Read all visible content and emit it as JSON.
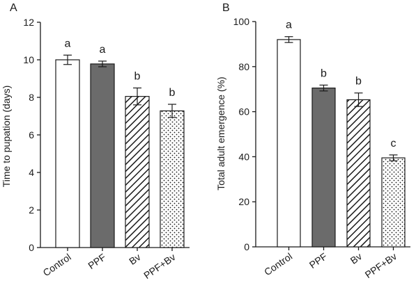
{
  "chart_data": [
    {
      "type": "bar",
      "panel_label": "A",
      "title": "",
      "xlabel": "",
      "ylabel": "Time to pupation (days)",
      "ylim": [
        0,
        12
      ],
      "yticks": [
        0,
        2,
        4,
        6,
        8,
        10,
        12
      ],
      "categories": [
        "Control",
        "PPF",
        "Bv",
        "PPF+Bv"
      ],
      "values": [
        10.0,
        9.78,
        8.05,
        7.28
      ],
      "errors": [
        0.25,
        0.15,
        0.45,
        0.35
      ],
      "significance": [
        "a",
        "a",
        "b",
        "b"
      ],
      "fills": [
        "white",
        "gray",
        "hatch",
        "dots"
      ],
      "grid": false,
      "legend": "none"
    },
    {
      "type": "bar",
      "panel_label": "B",
      "title": "",
      "xlabel": "",
      "ylabel": "Total adult emergence  (%)",
      "ylim": [
        0,
        100
      ],
      "yticks": [
        0,
        20,
        40,
        60,
        80,
        100
      ],
      "categories": [
        "Control",
        "PPF",
        "Bv",
        "PPF+Bv"
      ],
      "values": [
        92.0,
        70.5,
        65.3,
        39.5
      ],
      "errors": [
        1.3,
        1.3,
        3.0,
        1.3
      ],
      "significance": [
        "a",
        "b",
        "b",
        "c"
      ],
      "fills": [
        "white",
        "gray",
        "hatch",
        "dots"
      ],
      "grid": false,
      "legend": "none"
    }
  ],
  "colors": {
    "axis": "#1a1a1a",
    "bar_outline": "#1a1a1a",
    "white_fill": "#ffffff",
    "gray_fill": "#6b6b6b",
    "pattern_ink": "#1a1a1a"
  }
}
